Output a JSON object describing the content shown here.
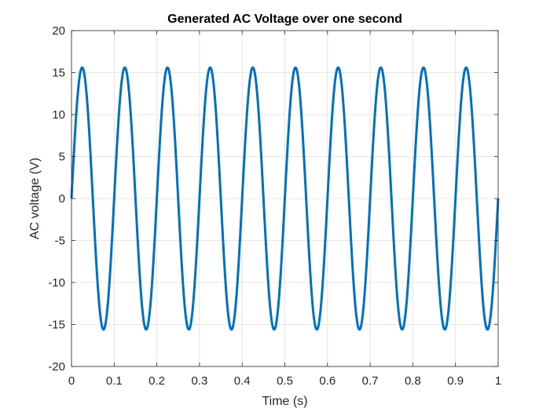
{
  "chart_data": {
    "type": "line",
    "title": "Generated AC Voltage over one second",
    "xlabel": "Time (s)",
    "ylabel": "AC voltage (V)",
    "xlim": [
      0,
      1
    ],
    "ylim": [
      -20,
      20
    ],
    "xticks": [
      "0",
      "0.1",
      "0.2",
      "0.3",
      "0.4",
      "0.5",
      "0.6",
      "0.7",
      "0.8",
      "0.9",
      "1"
    ],
    "yticks": [
      "20",
      "15",
      "10",
      "5",
      "0",
      "-5",
      "-10",
      "-15",
      "-20"
    ],
    "grid": true,
    "series": [
      {
        "amplitude": 15.6,
        "frequency": 10,
        "phase": 0,
        "x_start": 0,
        "x_end": 1,
        "color": "#0072BD"
      }
    ]
  }
}
